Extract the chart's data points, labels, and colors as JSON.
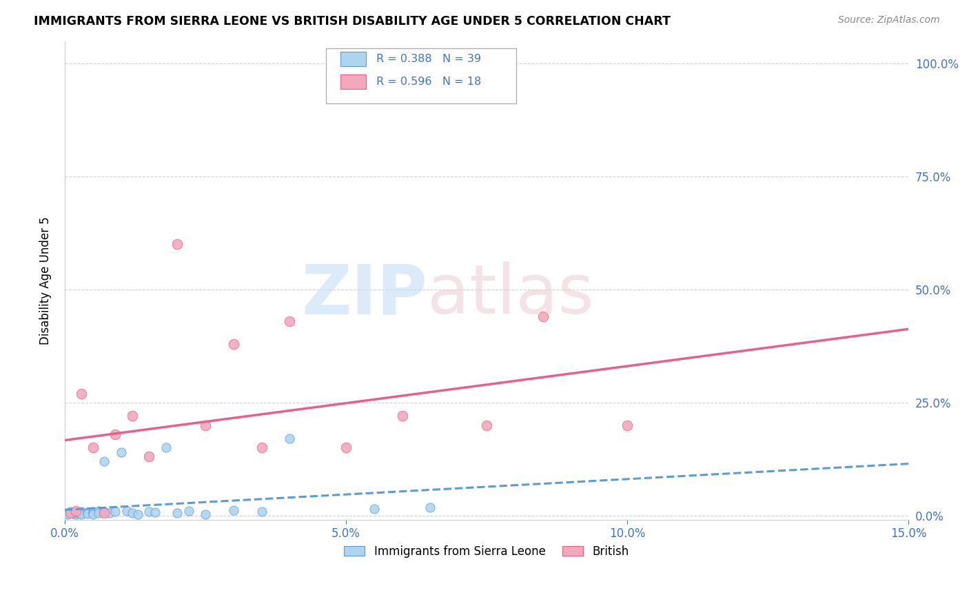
{
  "title": "IMMIGRANTS FROM SIERRA LEONE VS BRITISH DISABILITY AGE UNDER 5 CORRELATION CHART",
  "source": "Source: ZipAtlas.com",
  "ylabel": "Disability Age Under 5",
  "xlabel_ticks": [
    "0.0%",
    "5.0%",
    "10.0%",
    "15.0%"
  ],
  "xlabel_vals": [
    0.0,
    0.05,
    0.1,
    0.15
  ],
  "ylabel_ticks": [
    "0.0%",
    "25.0%",
    "50.0%",
    "75.0%",
    "100.0%"
  ],
  "ylabel_vals": [
    0.0,
    0.25,
    0.5,
    0.75,
    1.0
  ],
  "xlim": [
    0.0,
    0.15
  ],
  "ylim": [
    -0.01,
    1.05
  ],
  "r_sierra": 0.388,
  "n_sierra": 39,
  "r_british": 0.596,
  "n_british": 18,
  "sierra_color": "#aed4f0",
  "british_color": "#f4a8bc",
  "sierra_line_color": "#5b9bd5",
  "british_line_color": "#e8608a",
  "right_axis_color": "#4472c4",
  "sierra_x": [
    0.0005,
    0.001,
    0.001,
    0.0015,
    0.002,
    0.002,
    0.002,
    0.0025,
    0.003,
    0.003,
    0.003,
    0.003,
    0.004,
    0.004,
    0.004,
    0.005,
    0.005,
    0.005,
    0.006,
    0.006,
    0.007,
    0.007,
    0.008,
    0.009,
    0.01,
    0.011,
    0.012,
    0.013,
    0.015,
    0.016,
    0.018,
    0.02,
    0.022,
    0.025,
    0.03,
    0.035,
    0.04,
    0.055,
    0.065
  ],
  "sierra_y": [
    0.003,
    0.005,
    0.008,
    0.004,
    0.006,
    0.003,
    0.007,
    0.005,
    0.004,
    0.006,
    0.008,
    0.003,
    0.007,
    0.005,
    0.004,
    0.009,
    0.006,
    0.003,
    0.01,
    0.005,
    0.12,
    0.008,
    0.006,
    0.008,
    0.14,
    0.01,
    0.006,
    0.003,
    0.008,
    0.007,
    0.15,
    0.005,
    0.01,
    0.003,
    0.012,
    0.009,
    0.17,
    0.015,
    0.018
  ],
  "british_x": [
    0.001,
    0.002,
    0.003,
    0.005,
    0.007,
    0.009,
    0.012,
    0.015,
    0.02,
    0.025,
    0.03,
    0.035,
    0.04,
    0.05,
    0.06,
    0.075,
    0.085,
    0.1
  ],
  "british_y": [
    0.005,
    0.01,
    0.27,
    0.15,
    0.005,
    0.18,
    0.22,
    0.13,
    0.6,
    0.2,
    0.38,
    0.15,
    0.43,
    0.15,
    0.22,
    0.2,
    0.44,
    0.2
  ]
}
